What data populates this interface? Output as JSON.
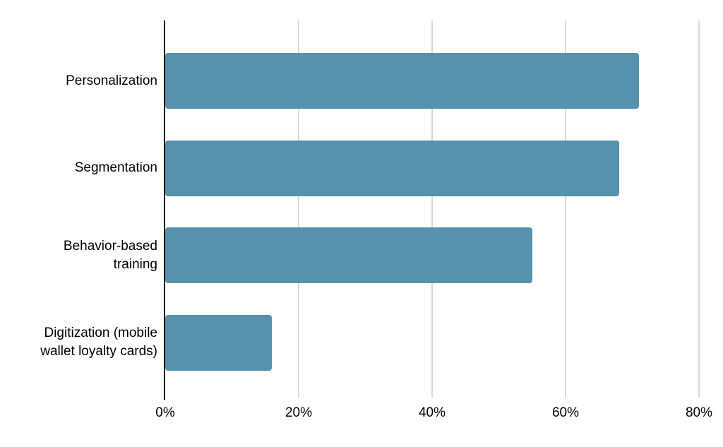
{
  "chart_data": {
    "type": "bar",
    "orientation": "horizontal",
    "title": "",
    "xlabel": "",
    "ylabel": "",
    "categories": [
      "Personalization",
      "Segmentation",
      "Behavior-based training",
      "Digitization (mobile wallet loyalty cards)"
    ],
    "category_label_lines": [
      [
        "Personalization"
      ],
      [
        "Segmentation"
      ],
      [
        "Behavior-based",
        "training"
      ],
      [
        "Digitization (mobile",
        "wallet loyalty cards)"
      ]
    ],
    "values": [
      71,
      68,
      55,
      16
    ],
    "value_unit": "%",
    "x_ticks": [
      {
        "label": "0%",
        "value": 0
      },
      {
        "label": "20%",
        "value": 20
      },
      {
        "label": "40%",
        "value": 40
      },
      {
        "label": "60%",
        "value": 60
      },
      {
        "label": "80%",
        "value": 80
      }
    ],
    "xlim": [
      0,
      80
    ],
    "grid": true,
    "legend": false,
    "colors": {
      "bar": "#5792ad",
      "gridline": "#d9d9d9",
      "axis": "#000000",
      "text": "#000000",
      "background": "#ffffff"
    }
  }
}
